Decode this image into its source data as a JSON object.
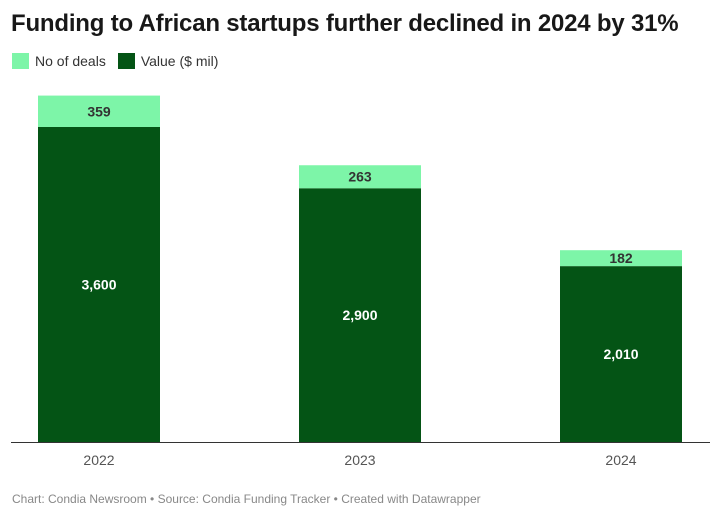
{
  "title": "Funding to African startups further declined in 2024 by 31%",
  "footer": "Chart: Condia Newsroom • Source: Condia Funding Tracker • Created with Datawrapper",
  "colors": {
    "deals": "#7df5a8",
    "value": "#045415"
  },
  "chart_data": {
    "type": "bar",
    "stacked": true,
    "categories": [
      "2022",
      "2023",
      "2024"
    ],
    "series": [
      {
        "name": "Value ($ mil)",
        "values": [
          3600,
          2900,
          2010
        ],
        "labels": [
          "3,600",
          "2,900",
          "2,010"
        ]
      },
      {
        "name": "No of deals",
        "values": [
          359,
          263,
          182
        ],
        "labels": [
          "359",
          "263",
          "182"
        ]
      }
    ],
    "legend": [
      "No of deals",
      "Value ($ mil)"
    ],
    "legend_position": "top-left",
    "ylim": [
      0,
      4000
    ],
    "grid": false,
    "xlabel": "",
    "ylabel": ""
  }
}
